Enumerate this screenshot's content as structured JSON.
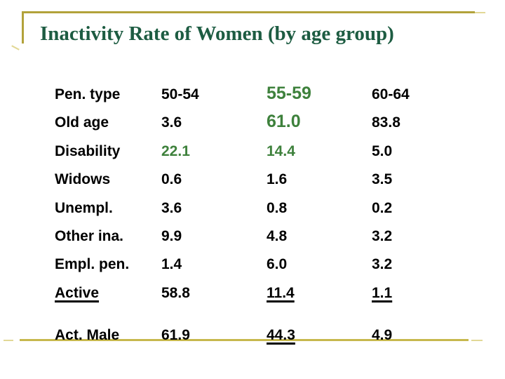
{
  "colors": {
    "title-green": "#1D5C42",
    "table-green": "#3E813C",
    "text": "#000000",
    "gold": "#B2A23A",
    "gold-bottom": "#C7B84D",
    "gold-faint": "#E2D896"
  },
  "slide": {
    "title": "Inactivity Rate of Women (by age group)"
  },
  "table": {
    "header": {
      "label": "Pen. type",
      "label_style": "",
      "columns": [
        {
          "text": "50-54",
          "style": ""
        },
        {
          "text": "55-59",
          "style": "green big"
        },
        {
          "text": "60-64",
          "style": ""
        }
      ]
    },
    "rows": [
      {
        "label": "Old age",
        "label_style": "",
        "cells": [
          {
            "text": "3.6",
            "style": ""
          },
          {
            "text": "61.0",
            "style": "green big"
          },
          {
            "text": "83.8",
            "style": ""
          }
        ]
      },
      {
        "label": "Disability",
        "label_style": "",
        "cells": [
          {
            "text": "22.1",
            "style": "green"
          },
          {
            "text": "14.4",
            "style": "green"
          },
          {
            "text": "5.0",
            "style": ""
          }
        ]
      },
      {
        "label": "Widows",
        "label_style": "",
        "cells": [
          {
            "text": "0.6",
            "style": ""
          },
          {
            "text": "1.6",
            "style": ""
          },
          {
            "text": "3.5",
            "style": ""
          }
        ]
      },
      {
        "label": "Unempl.",
        "label_style": "",
        "cells": [
          {
            "text": "3.6",
            "style": ""
          },
          {
            "text": "0.8",
            "style": ""
          },
          {
            "text": "0.2",
            "style": ""
          }
        ]
      },
      {
        "label": "Other ina.",
        "label_style": "",
        "cells": [
          {
            "text": "9.9",
            "style": ""
          },
          {
            "text": "4.8",
            "style": ""
          },
          {
            "text": "3.2",
            "style": ""
          }
        ]
      },
      {
        "label": "Empl. pen.",
        "label_style": "",
        "cells": [
          {
            "text": "1.4",
            "style": ""
          },
          {
            "text": "6.0",
            "style": ""
          },
          {
            "text": "3.2",
            "style": ""
          }
        ]
      },
      {
        "label": "Active",
        "label_style": "underline",
        "cells": [
          {
            "text": "58.8",
            "style": ""
          },
          {
            "text": "11.4",
            "style": "underline"
          },
          {
            "text": "1.1",
            "style": "underline"
          }
        ]
      },
      {
        "label": "Act. Male",
        "label_style": "",
        "cells": [
          {
            "text": "61.9",
            "style": ""
          },
          {
            "text": "44.3",
            "style": "underline"
          },
          {
            "text": "4.9",
            "style": ""
          }
        ]
      }
    ]
  },
  "chart_data": {
    "type": "table",
    "title": "Inactivity Rate of Women (by age group)",
    "columns": [
      "Pen. type",
      "50-54",
      "55-59",
      "60-64"
    ],
    "rows": [
      [
        "Old age",
        3.6,
        61.0,
        83.8
      ],
      [
        "Disability",
        22.1,
        14.4,
        5.0
      ],
      [
        "Widows",
        0.6,
        1.6,
        3.5
      ],
      [
        "Unempl.",
        3.6,
        0.8,
        0.2
      ],
      [
        "Other ina.",
        9.9,
        4.8,
        3.2
      ],
      [
        "Empl. pen.",
        1.4,
        6.0,
        3.2
      ],
      [
        "Active",
        58.8,
        11.4,
        1.1
      ],
      [
        "Act. Male",
        61.9,
        44.3,
        4.9
      ]
    ]
  }
}
